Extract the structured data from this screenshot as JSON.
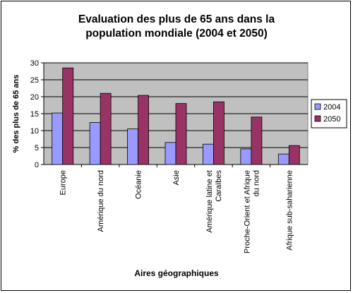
{
  "chart_data": {
    "type": "bar",
    "title_line1": "Evaluation des plus de 65 ans dans la",
    "title_line2": "population mondiale (2004 et 2050)",
    "xlabel": "Aires géographiques",
    "ylabel": "% des plus de 65 ans",
    "ylim": [
      0,
      30
    ],
    "yticks": [
      0,
      5,
      10,
      15,
      20,
      25,
      30
    ],
    "grid": true,
    "legend_position": "right",
    "categories": [
      [
        "Europe"
      ],
      [
        "Amérique du nord"
      ],
      [
        "Océanie"
      ],
      [
        "Asie"
      ],
      [
        "Amérique latine et",
        "Caraïbes"
      ],
      [
        "Proche-Orient et Afrique",
        "du nord"
      ],
      [
        "Afrique sub-saharienne"
      ]
    ],
    "series": [
      {
        "name": "2004",
        "color": "#9999ff",
        "values": [
          15.2,
          12.4,
          10.5,
          6.5,
          6.0,
          4.6,
          3.1
        ]
      },
      {
        "name": "2050",
        "color": "#993366",
        "values": [
          28.5,
          21.0,
          20.4,
          18.0,
          18.5,
          14.0,
          5.6
        ]
      }
    ],
    "plot_background": "#c0c0c0"
  }
}
